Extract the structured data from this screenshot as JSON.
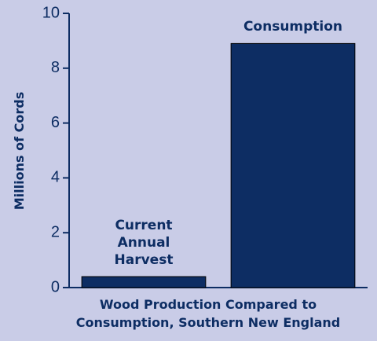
{
  "chart_data": {
    "type": "bar",
    "title": "Wood Production Compared to Consumption, Southern New England",
    "y_label": "Millions of Cords",
    "categories": [
      "Current Annual Harvest",
      "Consumption"
    ],
    "values": [
      0.4,
      8.9
    ],
    "color": "#0d2d63",
    "ylim": [
      0,
      10
    ],
    "yticks": [
      0,
      2,
      4,
      6,
      8,
      10
    ]
  }
}
